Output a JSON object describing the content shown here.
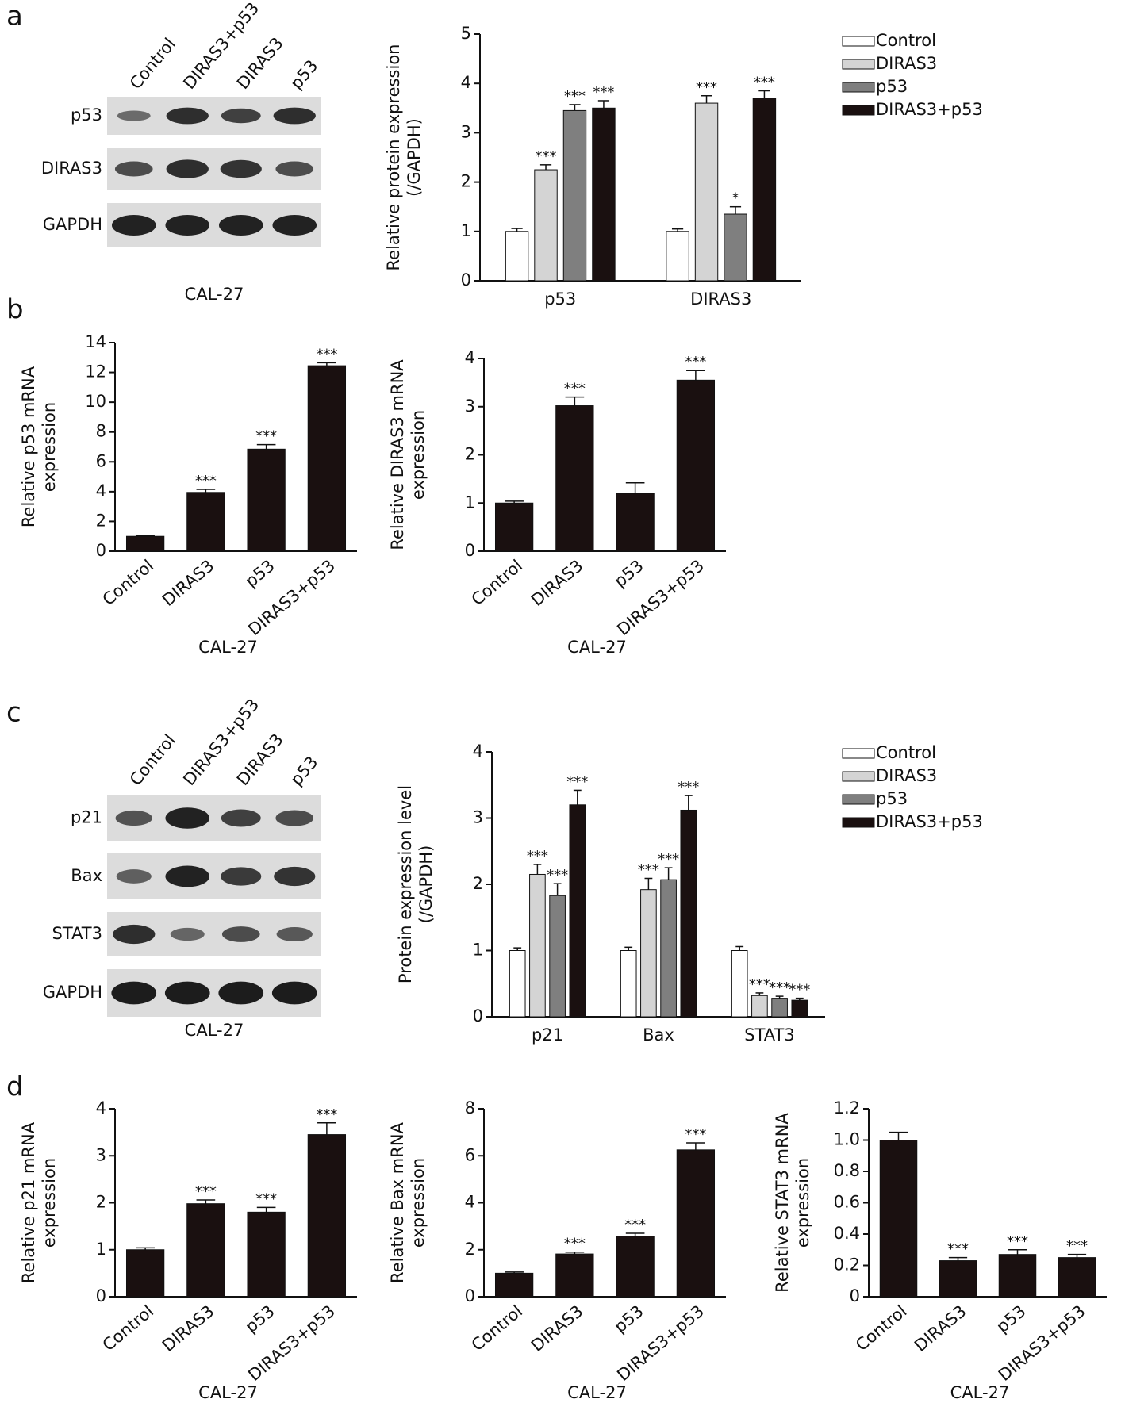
{
  "panel_labels": [
    "a",
    "b",
    "c",
    "d"
  ],
  "blots": [
    {
      "lanes": [
        "Control",
        "DIRAS3+p53",
        "DIRAS3",
        "p53"
      ],
      "rows": [
        "p53",
        "DIRAS3",
        "GAPDH"
      ],
      "caption": "CAL-27"
    },
    {
      "lanes": [
        "Control",
        "DIRAS3+p53",
        "DIRAS3",
        "p53"
      ],
      "rows": [
        "p21",
        "Bax",
        "STAT3",
        "GAPDH"
      ],
      "caption": "CAL-27"
    }
  ],
  "chart_data": [
    {
      "type": "bar",
      "categories": [
        "p53",
        "DIRAS3"
      ],
      "y_label": [
        "Relative protein expression",
        "(/GAPDH)"
      ],
      "ylim": [
        0,
        5
      ],
      "yticks": [
        0,
        1,
        2,
        3,
        4,
        5
      ],
      "series": [
        {
          "name": "Control",
          "color": "#ffffff",
          "values": [
            1,
            1
          ],
          "errors": [
            0.06,
            0.05
          ],
          "annotations": [
            null,
            null
          ]
        },
        {
          "name": "DIRAS3",
          "color": "#d4d4d4",
          "values": [
            2.25,
            3.6
          ],
          "errors": [
            0.1,
            0.15
          ],
          "annotations": [
            "***",
            "***"
          ]
        },
        {
          "name": "p53",
          "color": "#7f7f7f",
          "values": [
            3.45,
            1.35
          ],
          "errors": [
            0.12,
            0.15
          ],
          "annotations": [
            "***",
            "*"
          ]
        },
        {
          "name": "DIRAS3+p53",
          "color": "#1a1010",
          "values": [
            3.5,
            3.7
          ],
          "errors": [
            0.15,
            0.15
          ],
          "annotations": [
            "***",
            "***"
          ]
        }
      ]
    },
    {
      "type": "bar",
      "categories": [
        "Control",
        "DIRAS3",
        "p53",
        "DIRAS3+p53"
      ],
      "y_label": [
        "Relative p53 mRNA",
        "expression"
      ],
      "x_label": "CAL-27",
      "ylim": [
        0,
        14
      ],
      "yticks": [
        0,
        2,
        4,
        6,
        8,
        10,
        12,
        14
      ],
      "color": "#1a1010",
      "values": [
        1,
        3.95,
        6.85,
        12.45
      ],
      "errors": [
        0.05,
        0.2,
        0.3,
        0.2
      ],
      "annotations": [
        null,
        "***",
        "***",
        "***"
      ]
    },
    {
      "type": "bar",
      "categories": [
        "Control",
        "DIRAS3",
        "p53",
        "DIRAS3+p53"
      ],
      "y_label": [
        "Relative DIRAS3 mRNA",
        "expression"
      ],
      "x_label": "CAL-27",
      "ylim": [
        0,
        4
      ],
      "yticks": [
        0,
        1,
        2,
        3,
        4
      ],
      "color": "#1a1010",
      "values": [
        1,
        3.02,
        1.2,
        3.55
      ],
      "errors": [
        0.04,
        0.18,
        0.22,
        0.2
      ],
      "annotations": [
        null,
        "***",
        null,
        "***"
      ]
    },
    {
      "type": "bar",
      "categories": [
        "p21",
        "Bax",
        "STAT3"
      ],
      "y_label": [
        "Protein expression level",
        "(/GAPDH)"
      ],
      "ylim": [
        0,
        4
      ],
      "yticks": [
        0,
        1,
        2,
        3,
        4
      ],
      "series": [
        {
          "name": "Control",
          "color": "#ffffff",
          "values": [
            1,
            1,
            1
          ],
          "errors": [
            0.04,
            0.05,
            0.06
          ],
          "annotations": [
            null,
            null,
            null
          ]
        },
        {
          "name": "DIRAS3",
          "color": "#d4d4d4",
          "values": [
            2.15,
            1.92,
            0.32
          ],
          "errors": [
            0.15,
            0.17,
            0.04
          ],
          "annotations": [
            "***",
            "***",
            "***"
          ]
        },
        {
          "name": "p53",
          "color": "#7f7f7f",
          "values": [
            1.83,
            2.07,
            0.28
          ],
          "errors": [
            0.18,
            0.18,
            0.03
          ],
          "annotations": [
            "***",
            "***",
            "***"
          ]
        },
        {
          "name": "DIRAS3+p53",
          "color": "#1a1010",
          "values": [
            3.2,
            3.12,
            0.25
          ],
          "errors": [
            0.22,
            0.22,
            0.03
          ],
          "annotations": [
            "***",
            "***",
            "***"
          ]
        }
      ]
    },
    {
      "type": "bar",
      "categories": [
        "Control",
        "DIRAS3",
        "p53",
        "DIRAS3+p53"
      ],
      "y_label": [
        "Relative p21 mRNA",
        "expression"
      ],
      "x_label": "CAL-27",
      "ylim": [
        0,
        4
      ],
      "yticks": [
        0,
        1,
        2,
        3,
        4
      ],
      "color": "#1a1010",
      "values": [
        1,
        1.98,
        1.8,
        3.45
      ],
      "errors": [
        0.04,
        0.08,
        0.1,
        0.25
      ],
      "annotations": [
        null,
        "***",
        "***",
        "***"
      ]
    },
    {
      "type": "bar",
      "categories": [
        "Control",
        "DIRAS3",
        "p53",
        "DIRAS3+p53"
      ],
      "y_label": [
        "Relative Bax mRNA",
        "expression"
      ],
      "x_label": "CAL-27",
      "ylim": [
        0,
        8
      ],
      "yticks": [
        0,
        2,
        4,
        6,
        8
      ],
      "color": "#1a1010",
      "values": [
        1,
        1.82,
        2.58,
        6.25
      ],
      "errors": [
        0.05,
        0.08,
        0.12,
        0.3
      ],
      "annotations": [
        null,
        "***",
        "***",
        "***"
      ]
    },
    {
      "type": "bar",
      "categories": [
        "Control",
        "DIRAS3",
        "p53",
        "DIRAS3+p53"
      ],
      "y_label": [
        "Relative STAT3 mRNA",
        "expression"
      ],
      "x_label": "CAL-27",
      "ylim": [
        0,
        1.2
      ],
      "yticks": [
        0,
        0.2,
        0.4,
        0.6,
        0.8,
        {
          "value": 1,
          "label": "1.0"
        },
        1.2
      ],
      "color": "#1a1010",
      "values": [
        1,
        0.23,
        0.27,
        0.25
      ],
      "errors": [
        0.05,
        0.02,
        0.03,
        0.02
      ],
      "annotations": [
        null,
        "***",
        "***",
        "***"
      ]
    }
  ]
}
